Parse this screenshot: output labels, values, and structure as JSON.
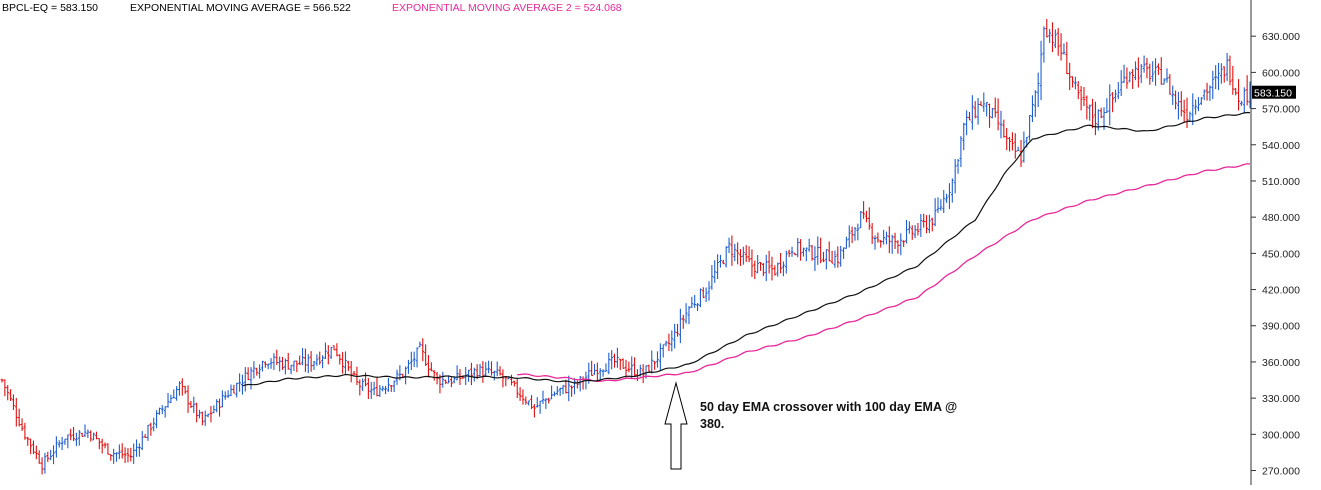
{
  "legend": {
    "price_label": "BPCL-EQ = 583.150",
    "ema1_label": "EXPONENTIAL MOVING AVERAGE = 566.522",
    "ema2_label": "EXPONENTIAL MOVING AVERAGE 2 = 524.068"
  },
  "colors": {
    "up_bar": "#1f5fd0",
    "down_bar": "#e01010",
    "ema1": "#111111",
    "ema2": "#e8289a",
    "axis": "#333333",
    "badge_bg": "#000000",
    "badge_text": "#ffffff"
  },
  "annotation": {
    "line1": "50 day EMA crossover with 100 day EMA @",
    "line2": "380."
  },
  "chart_data": {
    "type": "line",
    "ylim": [
      258,
      660
    ],
    "y_ticks": [
      270,
      300,
      330,
      360,
      390,
      420,
      450,
      480,
      510,
      540,
      570,
      600,
      630
    ],
    "y_tick_labels": [
      "270.000",
      "300.000",
      "330.000",
      "360.000",
      "390.000",
      "420.000",
      "450.000",
      "480.000",
      "510.000",
      "540.000",
      "570.000",
      "600.000",
      "630.000"
    ],
    "last_price": 583.15,
    "last_price_label": "583.150",
    "price_anchors": [
      [
        0,
        345
      ],
      [
        8,
        300
      ],
      [
        14,
        275
      ],
      [
        22,
        298
      ],
      [
        30,
        302
      ],
      [
        38,
        285
      ],
      [
        45,
        282
      ],
      [
        55,
        318
      ],
      [
        62,
        340
      ],
      [
        70,
        310
      ],
      [
        78,
        332
      ],
      [
        86,
        350
      ],
      [
        92,
        362
      ],
      [
        100,
        358
      ],
      [
        108,
        360
      ],
      [
        116,
        372
      ],
      [
        124,
        342
      ],
      [
        130,
        335
      ],
      [
        140,
        350
      ],
      [
        146,
        370
      ],
      [
        152,
        345
      ],
      [
        158,
        345
      ],
      [
        166,
        353
      ],
      [
        174,
        349
      ],
      [
        180,
        336
      ],
      [
        186,
        322
      ],
      [
        194,
        336
      ],
      [
        200,
        340
      ],
      [
        208,
        355
      ],
      [
        214,
        360
      ],
      [
        224,
        350
      ],
      [
        234,
        378
      ],
      [
        240,
        405
      ],
      [
        246,
        420
      ],
      [
        254,
        455
      ],
      [
        262,
        440
      ],
      [
        270,
        436
      ],
      [
        276,
        455
      ],
      [
        284,
        450
      ],
      [
        292,
        446
      ],
      [
        300,
        480
      ],
      [
        306,
        462
      ],
      [
        312,
        460
      ],
      [
        320,
        470
      ],
      [
        326,
        480
      ],
      [
        332,
        510
      ],
      [
        336,
        555
      ],
      [
        342,
        575
      ],
      [
        348,
        558
      ],
      [
        352,
        538
      ],
      [
        356,
        530
      ],
      [
        362,
        590
      ],
      [
        364,
        640
      ],
      [
        370,
        618
      ],
      [
        376,
        578
      ],
      [
        382,
        562
      ],
      [
        388,
        578
      ],
      [
        394,
        602
      ],
      [
        400,
        600
      ],
      [
        406,
        596
      ],
      [
        410,
        576
      ],
      [
        414,
        566
      ],
      [
        418,
        580
      ],
      [
        424,
        592
      ],
      [
        428,
        606
      ],
      [
        432,
        580
      ],
      [
        436,
        583
      ]
    ],
    "ema1_anchors": [
      [
        84,
        340
      ],
      [
        100,
        346
      ],
      [
        120,
        349
      ],
      [
        140,
        347
      ],
      [
        160,
        348
      ],
      [
        180,
        347
      ],
      [
        200,
        343
      ],
      [
        220,
        348
      ],
      [
        240,
        358
      ],
      [
        260,
        382
      ],
      [
        280,
        400
      ],
      [
        300,
        418
      ],
      [
        320,
        440
      ],
      [
        340,
        478
      ],
      [
        350,
        515
      ],
      [
        360,
        545
      ],
      [
        380,
        556
      ],
      [
        400,
        551
      ],
      [
        420,
        562
      ],
      [
        436,
        566.5
      ]
    ],
    "ema2_anchors": [
      [
        180,
        350
      ],
      [
        210,
        344
      ],
      [
        240,
        351
      ],
      [
        260,
        368
      ],
      [
        280,
        380
      ],
      [
        300,
        396
      ],
      [
        320,
        414
      ],
      [
        340,
        448
      ],
      [
        360,
        478
      ],
      [
        380,
        494
      ],
      [
        400,
        506
      ],
      [
        420,
        518
      ],
      [
        436,
        524
      ]
    ]
  }
}
